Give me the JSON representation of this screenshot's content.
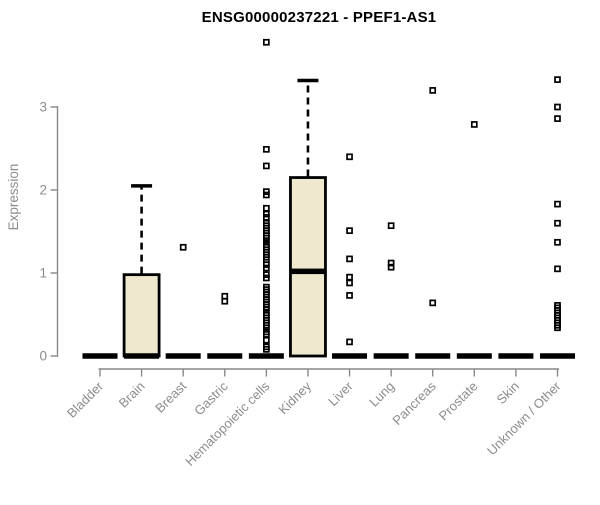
{
  "chart_data": {
    "type": "box",
    "title": "ENSG00000237221 - PPEF1-AS1",
    "xlabel": "",
    "ylabel": "Expression",
    "ylim": [
      0,
      3.9
    ],
    "yticks": [
      0,
      1,
      2,
      3
    ],
    "grid": false,
    "legend": "none",
    "categories": [
      "Bladder",
      "Brain",
      "Breast",
      "Gastric",
      "Hematopoietic cells",
      "Kidney",
      "Liver",
      "Lung",
      "Pancreas",
      "Prostate",
      "Skin",
      "Unknown / Other"
    ],
    "boxes": [
      {
        "category": "Bladder",
        "q1": 0,
        "median": 0,
        "q3": 0,
        "whisker_low": 0,
        "whisker_high": 0,
        "outliers": []
      },
      {
        "category": "Brain",
        "q1": 0,
        "median": 0,
        "q3": 0.98,
        "whisker_low": 0,
        "whisker_high": 2.05,
        "outliers": []
      },
      {
        "category": "Breast",
        "q1": 0,
        "median": 0,
        "q3": 0,
        "whisker_low": 0,
        "whisker_high": 0,
        "outliers": [
          1.31
        ]
      },
      {
        "category": "Gastric",
        "q1": 0,
        "median": 0,
        "q3": 0,
        "whisker_low": 0,
        "whisker_high": 0,
        "outliers": [
          0.72,
          0.66
        ]
      },
      {
        "category": "Hematopoietic cells",
        "q1": 0,
        "median": 0,
        "q3": 0,
        "whisker_low": 0,
        "whisker_high": 0,
        "outliers": [
          3.78,
          2.49,
          2.29,
          1.98,
          1.94,
          1.78,
          1.71,
          1.67,
          1.6,
          1.57,
          1.54,
          1.51,
          1.48,
          1.45,
          1.42,
          1.38,
          1.34,
          1.31,
          1.28,
          1.25,
          1.22,
          1.19,
          1.16,
          1.1,
          1.06,
          0.98,
          0.94,
          0.83,
          0.8,
          0.77,
          0.74,
          0.71,
          0.68,
          0.65,
          0.62,
          0.59,
          0.56,
          0.52,
          0.49,
          0.46,
          0.43,
          0.4,
          0.37,
          0.34,
          0.29,
          0.26,
          0.19,
          0.11,
          0.08
        ]
      },
      {
        "category": "Kidney",
        "q1": 0,
        "median": 1.02,
        "q3": 2.15,
        "whisker_low": 0,
        "whisker_high": 3.32,
        "outliers": []
      },
      {
        "category": "Liver",
        "q1": 0,
        "median": 0,
        "q3": 0,
        "whisker_low": 0,
        "whisker_high": 0,
        "outliers": [
          2.4,
          1.51,
          1.17,
          0.95,
          0.88,
          0.73,
          0.17
        ]
      },
      {
        "category": "Lung",
        "q1": 0,
        "median": 0,
        "q3": 0,
        "whisker_low": 0,
        "whisker_high": 0,
        "outliers": [
          1.57,
          1.12,
          1.07
        ]
      },
      {
        "category": "Pancreas",
        "q1": 0,
        "median": 0,
        "q3": 0,
        "whisker_low": 0,
        "whisker_high": 0,
        "outliers": [
          3.2,
          0.64
        ]
      },
      {
        "category": "Prostate",
        "q1": 0,
        "median": 0,
        "q3": 0,
        "whisker_low": 0,
        "whisker_high": 0,
        "outliers": [
          2.79
        ]
      },
      {
        "category": "Skin",
        "q1": 0,
        "median": 0,
        "q3": 0,
        "whisker_low": 0,
        "whisker_high": 0,
        "outliers": []
      },
      {
        "category": "Unknown / Other",
        "q1": 0,
        "median": 0,
        "q3": 0,
        "whisker_low": 0,
        "whisker_high": 0,
        "outliers": [
          3.33,
          3.0,
          2.86,
          1.83,
          1.6,
          1.37,
          1.05,
          0.61,
          0.58,
          0.55,
          0.52,
          0.49,
          0.46,
          0.43,
          0.4,
          0.37,
          0.34
        ]
      }
    ],
    "colors": {
      "box_fill": "#EDE8CE",
      "box_stroke": "#000000",
      "median": "#000000",
      "whisker": "#000000",
      "outlier": "#000000",
      "axis": "#898989",
      "tick_text": "#8c8c8c",
      "title_text": "#000000",
      "background": "#ffffff"
    }
  }
}
